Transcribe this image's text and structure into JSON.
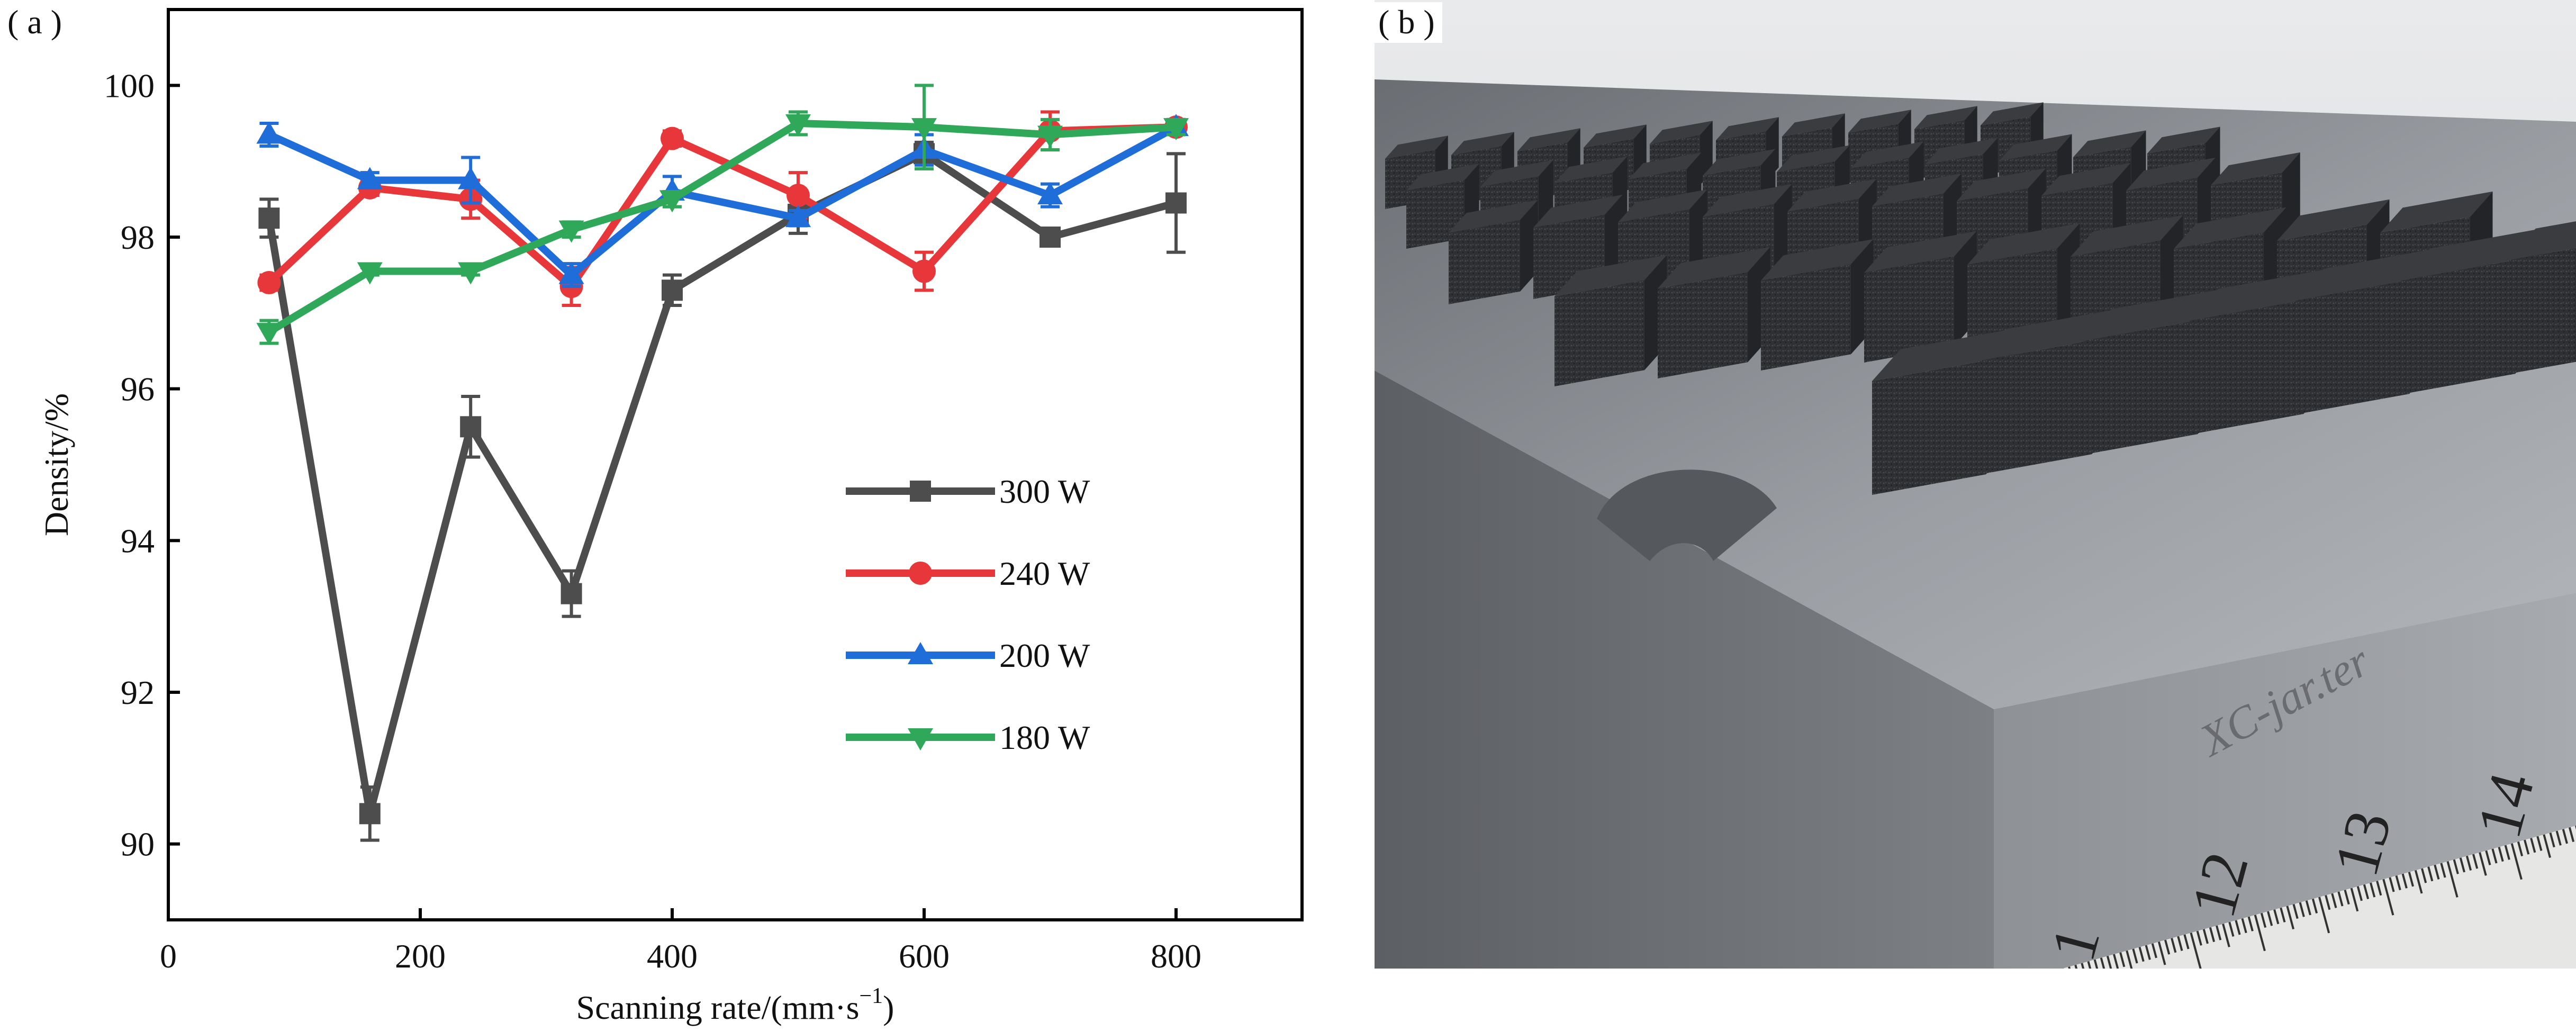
{
  "panels": {
    "a_label": "( a )",
    "b_label": "( b )"
  },
  "chart_data": {
    "type": "line",
    "xlabel": "Scanning rate/(mm·s",
    "xlabel_sup": "−1",
    "xlabel_close": ")",
    "ylabel": "Density/%",
    "xlim": [
      0,
      900
    ],
    "ylim": [
      89,
      101
    ],
    "xticks": [
      0,
      200,
      400,
      600,
      800
    ],
    "yticks": [
      90,
      92,
      94,
      96,
      98,
      100
    ],
    "grid": false,
    "legend_position": "center-right",
    "series": [
      {
        "name": "300 W",
        "color": "#4d4d4d",
        "marker": "square",
        "x": [
          80,
          160,
          240,
          320,
          400,
          500,
          600,
          700,
          800
        ],
        "y": [
          98.25,
          90.4,
          95.5,
          93.3,
          97.3,
          98.3,
          99.1,
          98.0,
          98.45
        ],
        "err": [
          0.25,
          0.35,
          0.4,
          0.3,
          0.2,
          0.25,
          0.15,
          0.1,
          0.65
        ]
      },
      {
        "name": "240 W",
        "color": "#e8373a",
        "marker": "circle",
        "x": [
          80,
          160,
          240,
          320,
          400,
          500,
          600,
          700,
          800
        ],
        "y": [
          97.4,
          98.65,
          98.5,
          97.35,
          99.3,
          98.55,
          97.55,
          99.4,
          99.45
        ],
        "err": [
          0.1,
          0.1,
          0.25,
          0.25,
          0.1,
          0.3,
          0.25,
          0.25,
          0.1
        ]
      },
      {
        "name": "200 W",
        "color": "#1f6dd8",
        "marker": "triangle-up",
        "x": [
          80,
          160,
          240,
          320,
          400,
          500,
          600,
          700,
          800
        ],
        "y": [
          99.35,
          98.75,
          98.75,
          97.5,
          98.6,
          98.25,
          99.15,
          98.55,
          99.45
        ],
        "err": [
          0.15,
          0.1,
          0.3,
          0.15,
          0.2,
          0.1,
          0.2,
          0.15,
          0.1
        ]
      },
      {
        "name": "180 W",
        "color": "#2fa85a",
        "marker": "triangle-down",
        "x": [
          80,
          160,
          240,
          320,
          400,
          500,
          600,
          700,
          800
        ],
        "y": [
          96.75,
          97.55,
          97.55,
          98.1,
          98.5,
          99.5,
          99.45,
          99.35,
          99.45
        ],
        "err": [
          0.15,
          0.05,
          0.05,
          0.1,
          0.1,
          0.15,
          0.55,
          0.2,
          0.1
        ]
      }
    ]
  },
  "photo": {
    "ruler_labels": [
      "1",
      "12",
      "13",
      "14"
    ],
    "engraving": "XC-jar.ter"
  }
}
